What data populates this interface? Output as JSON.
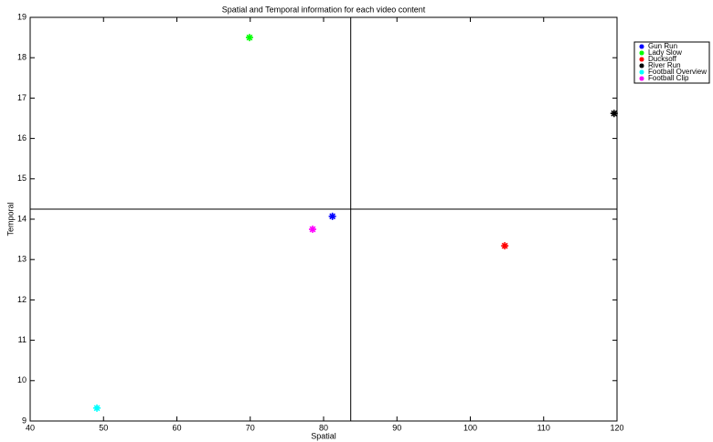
{
  "chart_data": {
    "type": "scatter",
    "title": "Spatial and Temporal information for each video content",
    "x_label": "Spatial",
    "y_label": "Temporal",
    "xlim": [
      40,
      120
    ],
    "xticks": [
      40,
      50,
      60,
      70,
      80,
      90,
      100,
      110,
      120
    ],
    "ylim": [
      9,
      19
    ],
    "yticks": [
      9,
      10,
      11,
      12,
      13,
      14,
      15,
      16,
      17,
      18,
      19
    ],
    "vline": 83.7,
    "hline": 14.25,
    "legend": "upper-right-outside",
    "series": [
      {
        "name": "Gun Run",
        "color": "#0000ff",
        "x": [
          81.2
        ],
        "values": [
          14.07
        ]
      },
      {
        "name": "Lady Slow",
        "color": "#00ff00",
        "x": [
          69.9
        ],
        "values": [
          18.5
        ]
      },
      {
        "name": "Ducksoff",
        "color": "#ff0000",
        "x": [
          104.7
        ],
        "values": [
          13.34
        ]
      },
      {
        "name": "River Run",
        "color": "#000000",
        "x": [
          119.6
        ],
        "values": [
          16.62
        ]
      },
      {
        "name": "Football Overview",
        "color": "#00ffff",
        "x": [
          49.1
        ],
        "values": [
          9.32
        ]
      },
      {
        "name": "Football Clip",
        "color": "#ff00ff",
        "x": [
          78.5
        ],
        "values": [
          13.75
        ]
      }
    ]
  }
}
